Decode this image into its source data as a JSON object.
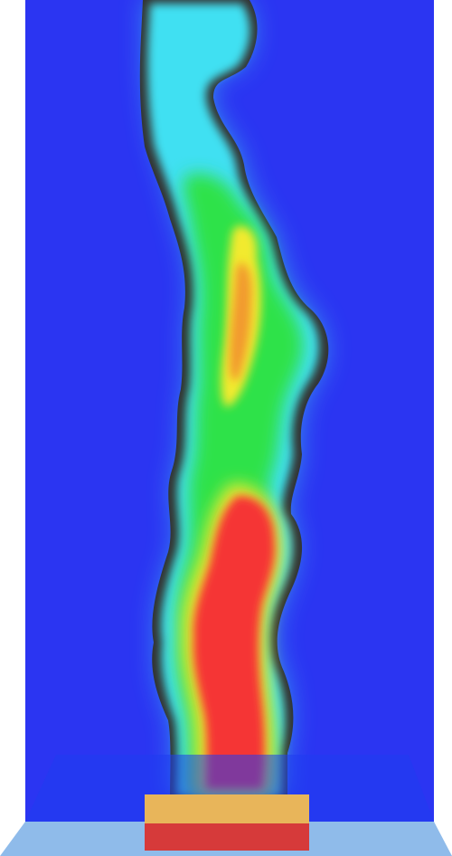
{
  "scene": {
    "subject": "plume-simulation",
    "colormap": {
      "low": "#2b35f2",
      "cyan": "#3fe0f2",
      "green": "#2ee24a",
      "yellow": "#f2ea2e",
      "orange": "#f29a2e",
      "high": "#f53535",
      "outline": "#333333"
    },
    "wall_color": "#2b35f2",
    "floor_color": "#8fbbea",
    "floor_tint_color": "#1f3df0",
    "source_top_color": "#e8b55a",
    "source_front_color": "#d63a3a"
  }
}
